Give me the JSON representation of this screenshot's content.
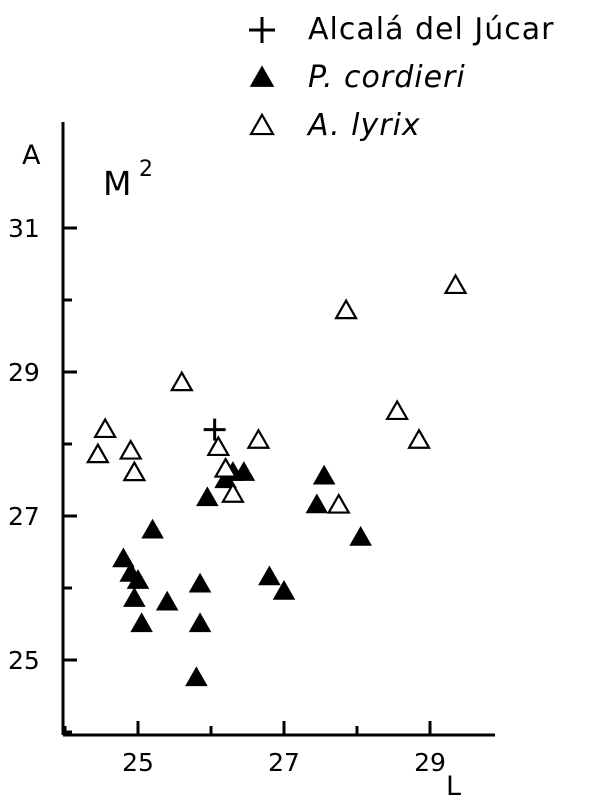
{
  "chart_data": {
    "type": "scatter",
    "title": "M",
    "title_superscript": "2",
    "xlabel": "L",
    "ylabel": "A",
    "xlim": [
      24.0,
      30.0
    ],
    "ylim": [
      24.0,
      32.0
    ],
    "xticks": [
      25,
      27,
      29
    ],
    "yticks": [
      25,
      27,
      29,
      31
    ],
    "minor_xticks": [
      24,
      26,
      28
    ],
    "minor_yticks": [
      24,
      26,
      28,
      30
    ],
    "grid": false,
    "legend": "top-right",
    "series": [
      {
        "name": "Alcalá del Júcar",
        "marker": "plus",
        "points": [
          [
            26.05,
            28.2
          ]
        ]
      },
      {
        "name": "P. cordieri",
        "marker": "filled-triangle",
        "points": [
          [
            24.8,
            26.4
          ],
          [
            24.9,
            26.2
          ],
          [
            25.0,
            26.1
          ],
          [
            24.95,
            25.85
          ],
          [
            25.2,
            26.8
          ],
          [
            25.05,
            25.5
          ],
          [
            25.4,
            25.8
          ],
          [
            25.85,
            26.05
          ],
          [
            25.85,
            25.5
          ],
          [
            25.8,
            24.75
          ],
          [
            25.95,
            27.25
          ],
          [
            26.2,
            27.5
          ],
          [
            26.3,
            27.6
          ],
          [
            26.45,
            27.6
          ],
          [
            26.8,
            26.15
          ],
          [
            27.0,
            25.95
          ],
          [
            27.45,
            27.15
          ],
          [
            27.55,
            27.55
          ],
          [
            28.05,
            26.7
          ]
        ]
      },
      {
        "name": "A. lyrix",
        "marker": "open-triangle",
        "points": [
          [
            24.45,
            27.85
          ],
          [
            24.55,
            28.2
          ],
          [
            24.9,
            27.9
          ],
          [
            24.95,
            27.6
          ],
          [
            25.6,
            28.85
          ],
          [
            26.1,
            27.95
          ],
          [
            26.2,
            27.65
          ],
          [
            26.3,
            27.3
          ],
          [
            26.65,
            28.05
          ],
          [
            27.85,
            29.85
          ],
          [
            27.75,
            27.15
          ],
          [
            28.55,
            28.45
          ],
          [
            28.85,
            28.05
          ],
          [
            29.35,
            30.2
          ]
        ]
      }
    ]
  }
}
